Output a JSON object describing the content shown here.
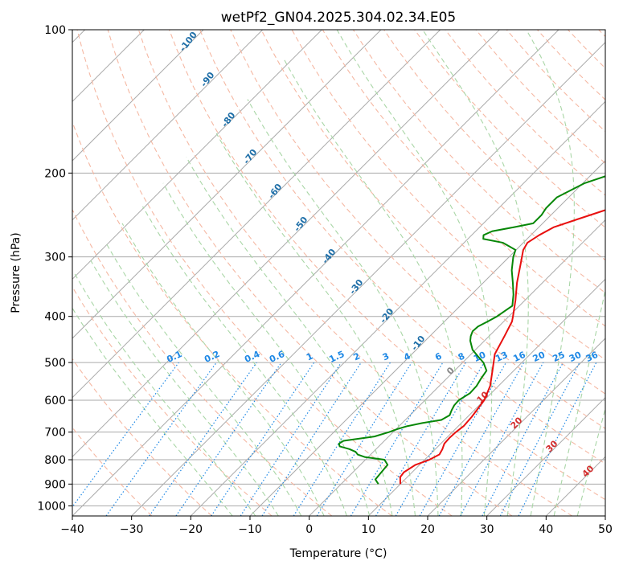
{
  "chart_data": {
    "type": "line",
    "title": "wetPf2_GN04.2025.304.02.34.E05",
    "xlabel": "Temperature (°C)",
    "ylabel": "Pressure (hPa)",
    "xlim": [
      -40,
      50
    ],
    "ylim": [
      1050,
      100
    ],
    "x_ticks": [
      "−40",
      "−30",
      "−20",
      "−10",
      "0",
      "10",
      "20",
      "30",
      "40",
      "50"
    ],
    "x_tick_values": [
      -40,
      -30,
      -20,
      -10,
      0,
      10,
      20,
      30,
      40,
      50
    ],
    "y_ticks": [
      "100",
      "200",
      "300",
      "400",
      "500",
      "600",
      "700",
      "800",
      "900",
      "1000"
    ],
    "y_tick_values": [
      100,
      200,
      300,
      400,
      500,
      600,
      700,
      800,
      900,
      1000
    ],
    "series": [
      {
        "name": "Temperature",
        "color": "#e8100f",
        "points": [
          [
            900,
            10.0
          ],
          [
            870,
            8.8
          ],
          [
            850,
            8.6
          ],
          [
            820,
            9.3
          ],
          [
            800,
            10.8
          ],
          [
            780,
            11.6
          ],
          [
            760,
            11.2
          ],
          [
            740,
            10.6
          ],
          [
            720,
            10.5
          ],
          [
            700,
            10.6
          ],
          [
            680,
            10.9
          ],
          [
            650,
            10.7
          ],
          [
            600,
            10.0
          ],
          [
            560,
            8.6
          ],
          [
            520,
            6.4
          ],
          [
            480,
            4.0
          ],
          [
            440,
            2.6
          ],
          [
            410,
            1.4
          ],
          [
            400,
            0.7
          ],
          [
            370,
            -1.6
          ],
          [
            340,
            -4.3
          ],
          [
            310,
            -6.9
          ],
          [
            290,
            -8.8
          ],
          [
            280,
            -9.3
          ],
          [
            270,
            -8.6
          ],
          [
            260,
            -7.5
          ],
          [
            250,
            -4.8
          ],
          [
            240,
            -1.9
          ],
          [
            230,
            1.0
          ],
          [
            215,
            4.0
          ],
          [
            200,
            5.8
          ],
          [
            185,
            7.1
          ],
          [
            170,
            8.6
          ],
          [
            160,
            10.3
          ],
          [
            150,
            11.5
          ],
          [
            140,
            12.8
          ],
          [
            130,
            14.6
          ],
          [
            120,
            17.3
          ],
          [
            110,
            21.5
          ],
          [
            100,
            24.5
          ]
        ]
      },
      {
        "name": "Dewpoint",
        "color": "#078707",
        "points": [
          [
            900,
            6.3
          ],
          [
            880,
            5.0
          ],
          [
            850,
            4.8
          ],
          [
            820,
            4.6
          ],
          [
            800,
            3.2
          ],
          [
            790,
            -0.5
          ],
          [
            780,
            -2.2
          ],
          [
            770,
            -3.0
          ],
          [
            760,
            -4.5
          ],
          [
            750,
            -6.6
          ],
          [
            740,
            -7.2
          ],
          [
            730,
            -6.9
          ],
          [
            715,
            -2.4
          ],
          [
            700,
            -0.7
          ],
          [
            690,
            0.2
          ],
          [
            680,
            1.4
          ],
          [
            670,
            3.4
          ],
          [
            660,
            6.1
          ],
          [
            645,
            6.7
          ],
          [
            630,
            6.2
          ],
          [
            615,
            5.8
          ],
          [
            600,
            5.7
          ],
          [
            580,
            6.4
          ],
          [
            560,
            6.3
          ],
          [
            540,
            5.8
          ],
          [
            520,
            5.4
          ],
          [
            500,
            3.5
          ],
          [
            485,
            1.5
          ],
          [
            470,
            -0.5
          ],
          [
            450,
            -2.4
          ],
          [
            440,
            -3.1
          ],
          [
            430,
            -3.6
          ],
          [
            420,
            -3.5
          ],
          [
            410,
            -2.7
          ],
          [
            400,
            -2.0
          ],
          [
            380,
            -1.2
          ],
          [
            360,
            -2.9
          ],
          [
            340,
            -5.0
          ],
          [
            320,
            -7.3
          ],
          [
            300,
            -9.3
          ],
          [
            290,
            -10.1
          ],
          [
            280,
            -13.5
          ],
          [
            275,
            -17.4
          ],
          [
            270,
            -18.0
          ],
          [
            265,
            -17.2
          ],
          [
            260,
            -14.3
          ],
          [
            255,
            -11.6
          ],
          [
            245,
            -11.6
          ],
          [
            237,
            -12.0
          ],
          [
            225,
            -12.0
          ],
          [
            210,
            -9.7
          ],
          [
            198,
            -5.6
          ],
          [
            190,
            -4.4
          ],
          [
            180,
            -4.8
          ],
          [
            170,
            -4.0
          ],
          [
            162,
            -3.4
          ],
          [
            155,
            -4.5
          ],
          [
            145,
            -6.9
          ],
          [
            130,
            -8.9
          ],
          [
            122,
            -9.2
          ],
          [
            115,
            -8.4
          ],
          [
            108,
            -6.8
          ],
          [
            100,
            -5.4
          ]
        ]
      }
    ],
    "dry_adiabat_labels": [
      "-100",
      "-90",
      "-80",
      "-70",
      "-60",
      "-50",
      "-40",
      "-30",
      "-20",
      "-10"
    ],
    "moist_adiabat_labels": [
      "0",
      "10",
      "20",
      "30",
      "40"
    ],
    "mixing_ratio_labels": [
      "0.1",
      "0.2",
      "0.4",
      "0.6",
      "1",
      "1.5",
      "2",
      "3",
      "4",
      "6",
      "8",
      "10",
      "13",
      "16",
      "20",
      "25",
      "30",
      "36"
    ]
  },
  "colors": {
    "isotherm": "#aaaaaa",
    "isobar": "#aaaaaa",
    "dry_adiabat": "#f5b8a3",
    "moist_adiabat": "#a9d6a6",
    "mixing_ratio": "#1e88e5",
    "dry_label": "#1f6fa8",
    "moist_label_zero": "#888888",
    "moist_label": "#d32f2f"
  }
}
